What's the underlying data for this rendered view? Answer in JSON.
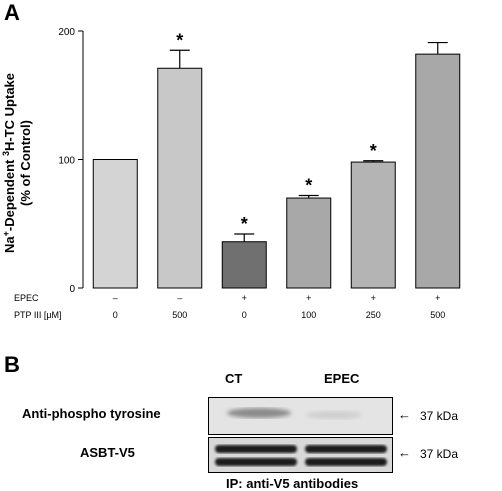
{
  "panel_a_label": "A",
  "panel_b_label": "B",
  "chart_data": {
    "type": "bar",
    "ylabel_line1": "Na+-Dependent 3H-TC Uptake",
    "ylabel_line2": "(% of Control)",
    "ylim": [
      0,
      200
    ],
    "yticks": [
      0,
      100,
      200
    ],
    "grid": false,
    "condition_rows": [
      {
        "label": "EPEC",
        "values": [
          "–",
          "–",
          "+",
          "+",
          "+",
          "+"
        ]
      },
      {
        "label": "PTP III [μM]",
        "values": [
          "0",
          "500",
          "0",
          "100",
          "250",
          "500"
        ]
      }
    ],
    "bars": [
      {
        "value": 100,
        "error": 0,
        "significant": false,
        "color": "#d4d4d4"
      },
      {
        "value": 171,
        "error": 14,
        "significant": true,
        "color": "#c8c8c8"
      },
      {
        "value": 36,
        "error": 6,
        "significant": true,
        "color": "#707070"
      },
      {
        "value": 70,
        "error": 2,
        "significant": true,
        "color": "#a8a8a8"
      },
      {
        "value": 98,
        "error": 1,
        "significant": true,
        "color": "#b4b4b4"
      },
      {
        "value": 182,
        "error": 9,
        "significant": false,
        "color": "#a8a8a8"
      }
    ],
    "significance_marker": "*"
  },
  "blot": {
    "lanes": [
      "CT",
      "EPEC"
    ],
    "rows": [
      {
        "label": "Anti-phospho tyrosine",
        "marker": "37 kDa"
      },
      {
        "label": "ASBT-V5",
        "marker": "37 kDa"
      }
    ],
    "caption": "IP: anti-V5 antibodies"
  }
}
